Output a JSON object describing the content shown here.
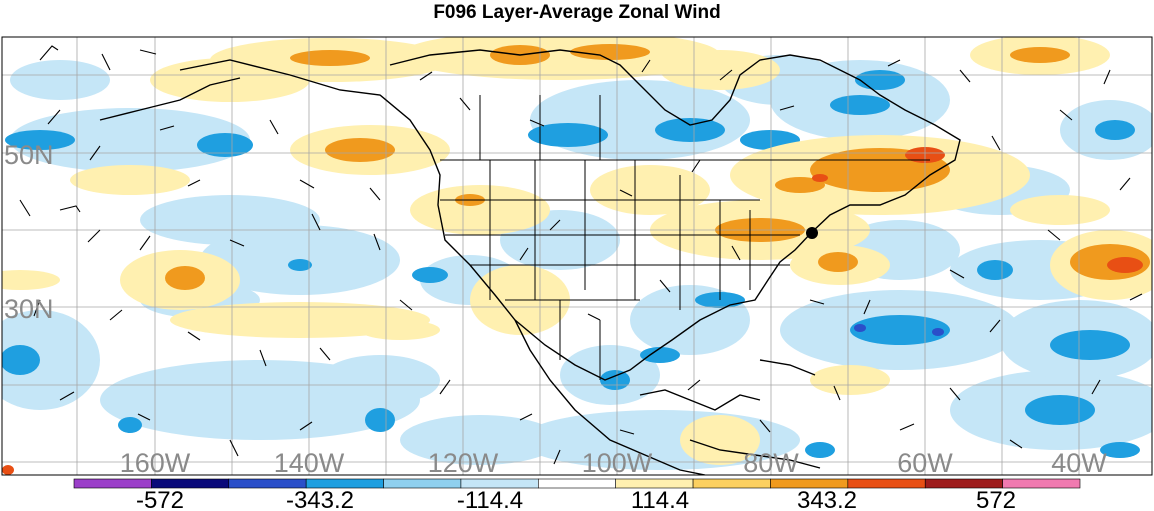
{
  "title": "F096 Layer-Average Zonal Wind",
  "lat_labels": [
    "50N",
    "30N"
  ],
  "lon_labels": [
    "160W",
    "140W",
    "120W",
    "100W",
    "80W",
    "60W",
    "40W"
  ],
  "colorbar": {
    "tick_labels": [
      "-572",
      "-343.2",
      "-114.4",
      "114.4",
      "343.2",
      "572"
    ],
    "colors": [
      "#9b3fc9",
      "#0a0a7a",
      "#2a4fc9",
      "#1f9fe0",
      "#8fd0ef",
      "#c5e6f7",
      "#ffffff",
      "#fff0b0",
      "#fcd060",
      "#f09a1e",
      "#e84f14",
      "#9e1c1c",
      "#f07ab0"
    ]
  },
  "legend": {
    "wind_barbs": "wind-barbs",
    "marker": "location-marker"
  }
}
